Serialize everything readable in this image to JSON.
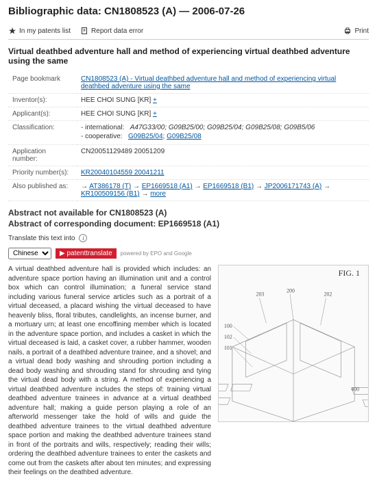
{
  "heading": "Bibliographic data: CN1808523 (A) — 2006-07-26",
  "toolbar": {
    "patents_list": "In my patents list",
    "report_error": "Report data error",
    "print": "Print"
  },
  "doc_title": "Virtual deathbed adventure hall and method of experiencing virtual deathbed adventure using the same",
  "meta": {
    "page_bookmark_label": "Page bookmark",
    "page_bookmark_value": "CN1808523 (A)  -  Virtual deathbed adventure hall and method of experiencing virtual deathbed adventure using the same",
    "inventors_label": "Inventor(s):",
    "inventors_value": "HEE CHOI SUNG  [KR] ",
    "inventors_plus": "+",
    "applicants_label": "Applicant(s):",
    "applicants_value": "HEE CHOI SUNG  [KR] ",
    "applicants_plus": "+",
    "classification_label": "Classification:",
    "class_international_label": "- international:",
    "class_international_value": "A47G33/00; G09B25/00; G09B25/04; G09B25/08; G09B5/06",
    "class_coop_label": "- cooperative:",
    "class_coop_values": [
      "G09B25/04",
      "G09B25/08"
    ],
    "appno_label": "Application number:",
    "appno_value": "CN20051129489 20051209",
    "priono_label": "Priority number(s):",
    "priono_value": "KR20040104559 20041211",
    "alsopub_label": "Also published as:",
    "alsopub_values": [
      "AT386178 (T)",
      "EP1669518 (A1)",
      "EP1669518 (B1)",
      "JP2006171743 (A)",
      "KR100509156 (B1)"
    ],
    "more": "more"
  },
  "abstract_head1": "Abstract not available for CN1808523 (A)",
  "abstract_head2": "Abstract of corresponding document: EP1669518 (A1)",
  "translate": {
    "label": "Translate this text into",
    "selected": "Chinese",
    "button": "patenttranslate",
    "note": "powered by EPO and Google"
  },
  "abstract_text": "A virtual deathbed adventure hall is provided which includes: an adventure space portion having an illumination unit and a control box which can control illumination; a funeral service stand including various funeral service articles such as a portrait of a virtual deceased, a placard wishing the virtual deceased to have heavenly bliss, floral tributes, candlelights, an incense burner, and a mortuary urn; at least one encoffining member which is located in the adventure space portion, and includes a casket in which the virtual deceased is laid, a casket cover, a rubber hammer, wooden nails, a portrait of a deathbed adventure trainee, and a shovel; and a virtual dead body washing and shrouding portion including a dead body washing and shrouding stand for shrouding and tying the virtual dead body with a string. A method of experiencing a virtual deathbed adventure includes the steps of: training virtual deathbed adventure trainees in advance at a virtual deathbed adventure hall; making a guide person playing a role of an afterworld messenger take the hold of wills and guide the deathbed adventure trainees to the virtual deathbed adventure space portion and making the deathbed adventure trainees stand in front of the portraits and wills, respectively; reading their wills; ordering the deathbed adventure trainees to enter the caskets and come out from the caskets after about ten minutes; and expressing their feelings on the deathbed adventure.",
  "figure": {
    "caption": "FIG. 1",
    "labels": [
      "203",
      "200",
      "202",
      "100",
      "102",
      "101",
      "400"
    ],
    "line_color": "#888888",
    "bg": "#fafafa"
  }
}
